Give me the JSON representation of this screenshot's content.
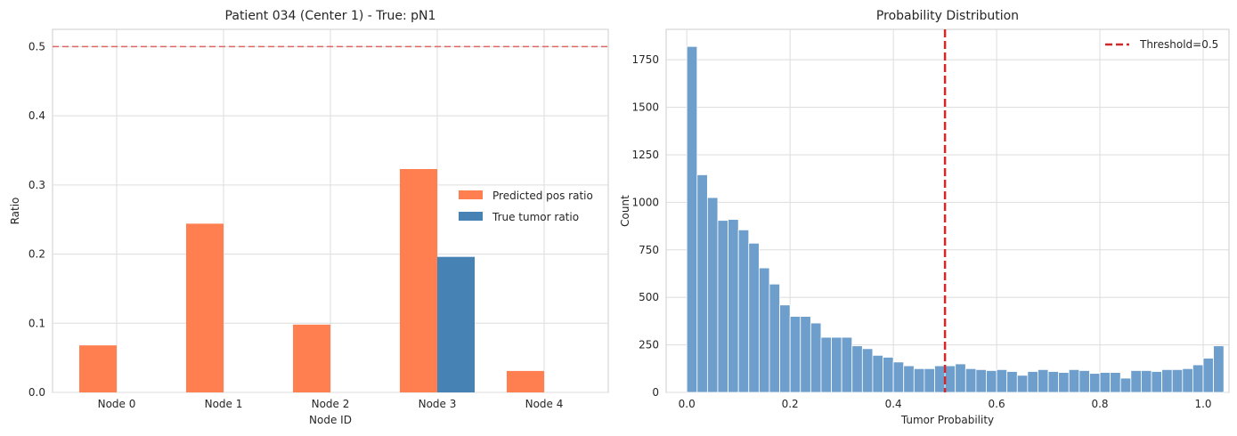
{
  "chart_data": [
    {
      "type": "bar",
      "title": "Patient 034 (Center 1) - True: pN1",
      "xlabel": "Node ID",
      "ylabel": "Ratio",
      "categories": [
        "Node 0",
        "Node 1",
        "Node 2",
        "Node 3",
        "Node 4"
      ],
      "series": [
        {
          "name": "Predicted pos ratio",
          "color": "#ff7f50",
          "values": [
            0.068,
            0.244,
            0.098,
            0.323,
            0.031
          ]
        },
        {
          "name": "True tumor ratio",
          "color": "#4682b4",
          "values": [
            0,
            0,
            0,
            0.196,
            0
          ]
        }
      ],
      "ylim": [
        0,
        0.525
      ],
      "yticks": [
        "0.0",
        "0.1",
        "0.2",
        "0.3",
        "0.4",
        "0.5"
      ],
      "reference_line": {
        "y": 0.5,
        "style": "dashed",
        "color": "#e06666"
      },
      "grid": true,
      "legend_position": "center-right"
    },
    {
      "type": "histogram",
      "title": "Probability Distribution",
      "xlabel": "Tumor Probability",
      "ylabel": "Count",
      "bin_start": 0.0,
      "bin_width": 0.02,
      "color": "#6e9fcc",
      "counts": [
        1820,
        1145,
        1025,
        905,
        910,
        855,
        785,
        655,
        570,
        460,
        400,
        400,
        365,
        290,
        290,
        290,
        245,
        230,
        195,
        185,
        160,
        140,
        125,
        125,
        140,
        140,
        150,
        125,
        120,
        115,
        120,
        110,
        90,
        110,
        120,
        110,
        105,
        120,
        115,
        100,
        105,
        105,
        75,
        115,
        115,
        110,
        120,
        120,
        125,
        145,
        180,
        245
      ],
      "xlim": [
        -0.04,
        1.05
      ],
      "ylim": [
        0,
        1910
      ],
      "xticks": [
        "0.0",
        "0.2",
        "0.4",
        "0.6",
        "0.8",
        "1.0"
      ],
      "yticks": [
        "0",
        "250",
        "500",
        "750",
        "1000",
        "1250",
        "1500",
        "1750"
      ],
      "threshold": {
        "x": 0.5,
        "label": "Threshold=0.5",
        "color": "#d62728"
      },
      "grid": true,
      "legend_position": "top-right"
    }
  ]
}
